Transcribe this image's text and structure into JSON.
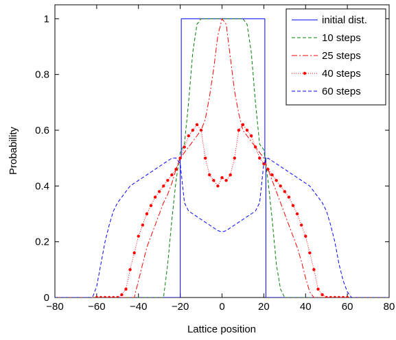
{
  "chart_data": {
    "type": "line",
    "title": "",
    "xlabel": "Lattice position",
    "ylabel": "Probability",
    "xlim": [
      -80,
      80
    ],
    "ylim": [
      0,
      1.05
    ],
    "xticks": [
      -80,
      -60,
      -40,
      -20,
      0,
      20,
      40,
      60,
      80
    ],
    "yticks": [
      0,
      0.2,
      0.4,
      0.6,
      0.8,
      1
    ],
    "xtick_labels": [
      "−80",
      "−60",
      "−40",
      "−20",
      "0",
      "20",
      "40",
      "60",
      "80"
    ],
    "ytick_labels": [
      "0",
      "0.2",
      "0.4",
      "0.6",
      "0.8",
      "1"
    ],
    "grid": false,
    "legend_position": "top-right",
    "series": [
      {
        "name": "initial dist.",
        "color": "#0000ff",
        "style": "solid",
        "x": [
          -80,
          -20,
          -20,
          -19.5,
          -19.5,
          20.5,
          20.5,
          21,
          21,
          80
        ],
        "y": [
          0,
          0,
          0.5,
          0.5,
          1,
          1,
          0.5,
          0.5,
          0,
          0
        ]
      },
      {
        "name": "10 steps",
        "color": "#008000",
        "style": "dashed",
        "x": [
          -80,
          -28,
          -26,
          -24,
          -22,
          -20,
          -18,
          -16,
          -14,
          -12,
          -10,
          10,
          12,
          14,
          16,
          18,
          20,
          22,
          24,
          26,
          28,
          30,
          80
        ],
        "y": [
          0,
          0,
          0.12,
          0.28,
          0.42,
          0.52,
          0.55,
          0.7,
          0.88,
          0.98,
          1,
          1,
          0.98,
          0.88,
          0.7,
          0.55,
          0.53,
          0.42,
          0.28,
          0.12,
          0.03,
          0,
          0
        ]
      },
      {
        "name": "25 steps",
        "color": "#ff0000",
        "style": "dashdot",
        "x": [
          -80,
          -42,
          -40,
          -38,
          -36,
          -34,
          -32,
          -30,
          -28,
          -26,
          -24,
          -22,
          -20,
          -18,
          -16,
          -14,
          -12,
          -10,
          -8,
          -6,
          -4,
          -2,
          0,
          2,
          4,
          6,
          8,
          10,
          12,
          14,
          16,
          18,
          20,
          22,
          24,
          26,
          28,
          30,
          32,
          34,
          36,
          38,
          40,
          42,
          44,
          80
        ],
        "y": [
          0,
          0,
          0.06,
          0.12,
          0.18,
          0.22,
          0.26,
          0.3,
          0.34,
          0.37,
          0.41,
          0.46,
          0.5,
          0.52,
          0.54,
          0.56,
          0.58,
          0.6,
          0.64,
          0.72,
          0.82,
          0.94,
          1,
          0.98,
          0.86,
          0.74,
          0.66,
          0.6,
          0.58,
          0.56,
          0.54,
          0.52,
          0.5,
          0.46,
          0.42,
          0.38,
          0.34,
          0.3,
          0.26,
          0.22,
          0.18,
          0.13,
          0.07,
          0.02,
          0,
          0
        ]
      },
      {
        "name": "40 steps",
        "color": "#ff0000",
        "style": "dotted-marker",
        "x": [
          -80,
          -60,
          -58,
          -56,
          -54,
          -52,
          -50,
          -48,
          -46,
          -44,
          -42,
          -40,
          -38,
          -36,
          -34,
          -32,
          -30,
          -28,
          -26,
          -24,
          -22,
          -20,
          -18,
          -16,
          -14,
          -12,
          -10,
          -8,
          -6,
          -4,
          -2,
          0,
          2,
          4,
          6,
          8,
          10,
          12,
          14,
          16,
          18,
          20,
          22,
          24,
          26,
          28,
          30,
          32,
          34,
          36,
          38,
          40,
          42,
          44,
          46,
          48,
          50,
          52,
          54,
          56,
          58,
          60,
          80
        ],
        "y": [
          0,
          0,
          0,
          0,
          0,
          0,
          0,
          0.01,
          0.03,
          0.1,
          0.16,
          0.22,
          0.26,
          0.3,
          0.33,
          0.36,
          0.38,
          0.4,
          0.42,
          0.44,
          0.46,
          0.5,
          0.54,
          0.58,
          0.6,
          0.62,
          0.6,
          0.5,
          0.44,
          0.42,
          0.4,
          0.43,
          0.42,
          0.44,
          0.5,
          0.6,
          0.62,
          0.6,
          0.58,
          0.54,
          0.5,
          0.48,
          0.46,
          0.44,
          0.42,
          0.4,
          0.38,
          0.36,
          0.33,
          0.3,
          0.26,
          0.22,
          0.16,
          0.1,
          0.03,
          0.01,
          0,
          0,
          0,
          0,
          0,
          0,
          0
        ]
      },
      {
        "name": "60 steps",
        "color": "#0000ff",
        "style": "dashed",
        "x": [
          -80,
          -62,
          -60,
          -58,
          -56,
          -54,
          -52,
          -50,
          -48,
          -46,
          -44,
          -42,
          -40,
          -38,
          -36,
          -34,
          -32,
          -30,
          -28,
          -26,
          -24,
          -22,
          -20,
          -18,
          -16,
          -14,
          -12,
          -10,
          -8,
          -6,
          -4,
          -2,
          0,
          2,
          4,
          6,
          8,
          10,
          12,
          14,
          16,
          18,
          20,
          22,
          24,
          26,
          28,
          30,
          32,
          34,
          36,
          38,
          40,
          42,
          44,
          46,
          48,
          50,
          52,
          54,
          56,
          58,
          60,
          62,
          64,
          80
        ],
        "y": [
          0,
          0,
          0.04,
          0.12,
          0.2,
          0.26,
          0.31,
          0.34,
          0.36,
          0.38,
          0.4,
          0.41,
          0.42,
          0.43,
          0.44,
          0.45,
          0.46,
          0.47,
          0.48,
          0.49,
          0.5,
          0.5,
          0.48,
          0.34,
          0.31,
          0.3,
          0.29,
          0.28,
          0.27,
          0.26,
          0.25,
          0.24,
          0.235,
          0.24,
          0.25,
          0.26,
          0.27,
          0.28,
          0.29,
          0.3,
          0.31,
          0.34,
          0.48,
          0.5,
          0.49,
          0.48,
          0.47,
          0.46,
          0.45,
          0.44,
          0.43,
          0.42,
          0.41,
          0.4,
          0.38,
          0.36,
          0.34,
          0.31,
          0.26,
          0.2,
          0.12,
          0.06,
          0.02,
          0,
          0,
          0
        ]
      }
    ]
  }
}
